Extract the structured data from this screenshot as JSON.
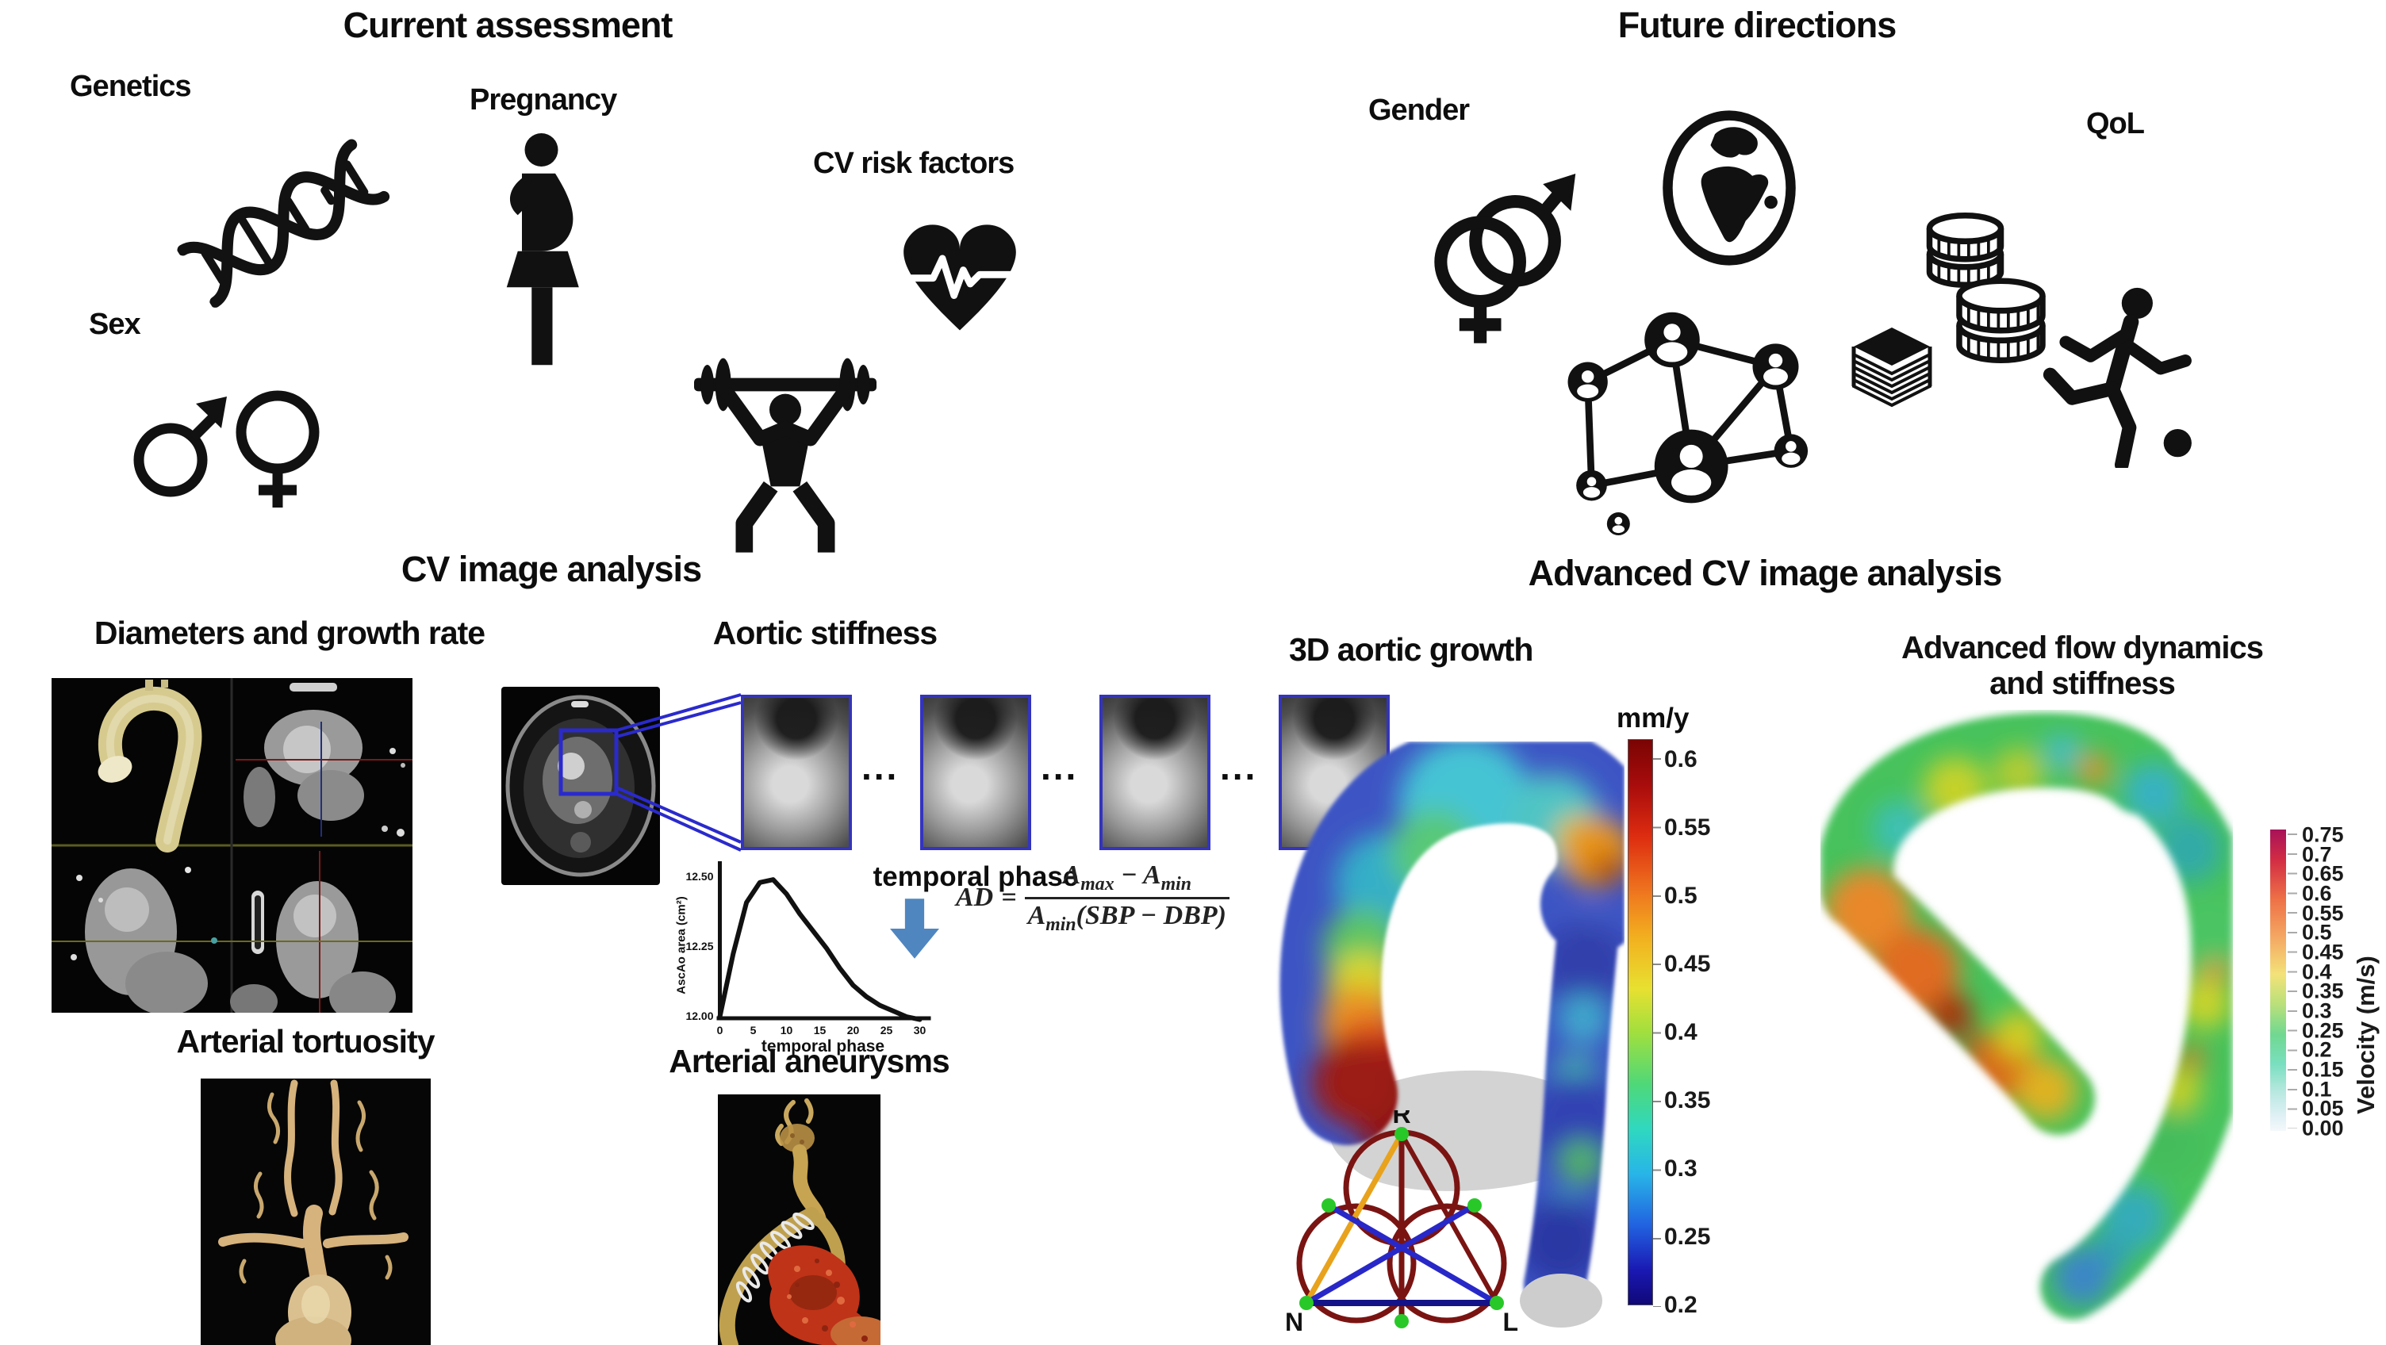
{
  "current": {
    "title": "Current assessment",
    "genetics_label": "Genetics",
    "pregnancy_label": "Pregnancy",
    "cv_risk_label": "CV risk factors",
    "sex_label": "Sex",
    "icons": [
      "dna-icon",
      "pregnant-woman-icon",
      "heart-pulse-icon",
      "male-female-icon",
      "weightlifter-icon"
    ]
  },
  "future": {
    "title": "Future directions",
    "gender_label": "Gender",
    "qol_label": "QoL",
    "icons": [
      "gender-symbols-icon",
      "globe-icon",
      "coins-icon",
      "people-network-icon",
      "books-icon",
      "runner-ball-icon"
    ]
  },
  "cv_analysis": {
    "title": "CV image analysis",
    "diameters_label": "Diameters and growth rate",
    "stiffness_label": "Aortic stiffness",
    "tortuosity_label": "Arterial tortuosity",
    "aneurysms_label": "Arterial aneurysms",
    "temporal_phase_label": "temporal phase",
    "ellipsis": "...",
    "formula": {
      "lhs": "AD",
      "equals": "=",
      "num_a": "A",
      "num_a_sub": "max",
      "minus": "−",
      "num_b": "A",
      "num_b_sub": "min",
      "den_a": "A",
      "den_a_sub": "min",
      "den_paren": "(SBP − DBP)"
    },
    "plot": {
      "ylabel": "AscAo area (cm²)",
      "xlabel": "temporal phase",
      "yticks": [
        "12.50",
        "12.25",
        "12.00"
      ],
      "xticks": [
        "0",
        "5",
        "10",
        "15",
        "20",
        "25",
        "30"
      ]
    }
  },
  "advanced": {
    "title": "Advanced CV image analysis",
    "growth_label": "3D aortic growth",
    "flow_label_line1": "Advanced flow dynamics",
    "flow_label_line2": "and stiffness",
    "growth_colorbar": {
      "unit": "mm/y",
      "ticks": [
        "0.6",
        "0.55",
        "0.5",
        "0.45",
        "0.4",
        "0.35",
        "0.3",
        "0.25",
        "0.2"
      ]
    },
    "velocity_colorbar": {
      "label": "Velocity (m/s)",
      "ticks": [
        "0.75",
        "0.7",
        "0.65",
        "0.6",
        "0.55",
        "0.5",
        "0.45",
        "0.4",
        "0.35",
        "0.3",
        "0.25",
        "0.2",
        "0.15",
        "0.1",
        "0.05",
        "0.00"
      ]
    },
    "valve_diagram": {
      "r": "R",
      "n": "N",
      "l": "L"
    }
  },
  "colors": {
    "accent_blue_arrow": "#4f86c0",
    "roi_blue": "#2a2acc",
    "crop_border_blue": "#3434bd",
    "ct_aorta_gold": "#d6ca8e",
    "vessel_tan": "#d6b27c",
    "aneurysm_red": "#bf3318",
    "jet_top": "#7a0403",
    "jet_bottom": "#100878",
    "velocity_top": "#a81258",
    "velocity_bottom": "#f4f8fb"
  },
  "chart_data": [
    {
      "type": "line",
      "title": "",
      "xlabel": "temporal phase",
      "ylabel": "AscAo area (cm²)",
      "x": [
        0,
        2,
        4,
        6,
        8,
        10,
        12,
        14,
        16,
        18,
        20,
        22,
        24,
        26,
        28,
        30
      ],
      "y": [
        12.0,
        12.22,
        12.4,
        12.47,
        12.48,
        12.43,
        12.36,
        12.3,
        12.24,
        12.17,
        12.11,
        12.07,
        12.04,
        12.02,
        12.0,
        11.99
      ],
      "xlim": [
        0,
        30
      ],
      "ylim": [
        11.95,
        12.55
      ],
      "xticks": [
        0,
        5,
        10,
        15,
        20,
        25,
        30
      ],
      "yticks": [
        12.0,
        12.25,
        12.5
      ],
      "grid": false,
      "legend": null
    },
    {
      "type": "heatmap",
      "role": "colorbar-legend",
      "title": "3D aortic growth color scale",
      "unit": "mm/y",
      "orientation": "vertical",
      "colormap": "jet (dark red high → dark blue low)",
      "ticks": [
        0.6,
        0.55,
        0.5,
        0.45,
        0.4,
        0.35,
        0.3,
        0.25,
        0.2
      ]
    },
    {
      "type": "heatmap",
      "role": "colorbar-legend",
      "title": "Velocity color scale",
      "unit": "m/s",
      "label": "Velocity (m/s)",
      "orientation": "vertical",
      "colormap": "magenta-red-orange-yellow-green-pale blue",
      "ticks": [
        0.75,
        0.7,
        0.65,
        0.6,
        0.55,
        0.5,
        0.45,
        0.4,
        0.35,
        0.3,
        0.25,
        0.2,
        0.15,
        0.1,
        0.05,
        0.0
      ]
    }
  ]
}
